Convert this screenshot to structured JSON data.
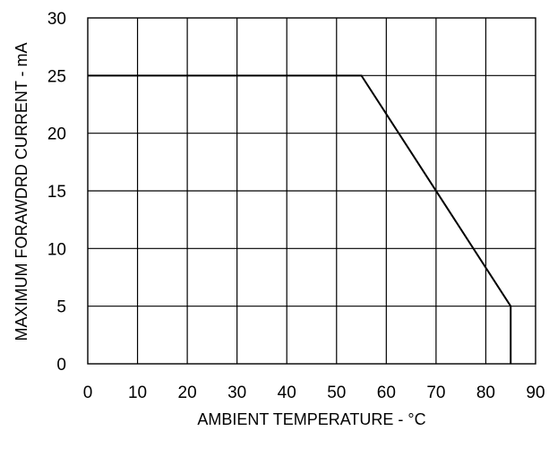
{
  "chart_data": {
    "type": "line",
    "xlabel": "AMBIENT TEMPERATURE - °C",
    "ylabel": "MAXIMUM FORAWDRD CURRENT - mA",
    "xlim": [
      0,
      90
    ],
    "ylim": [
      0,
      30
    ],
    "x_ticks": [
      0,
      10,
      20,
      30,
      40,
      50,
      60,
      70,
      80,
      90
    ],
    "y_ticks": [
      0,
      5,
      10,
      15,
      20,
      25,
      30
    ],
    "grid": true,
    "series": [
      {
        "points": [
          {
            "x": 0,
            "y": 25
          },
          {
            "x": 55,
            "y": 25
          },
          {
            "x": 85,
            "y": 5
          },
          {
            "x": 85,
            "y": 0
          }
        ]
      }
    ]
  }
}
